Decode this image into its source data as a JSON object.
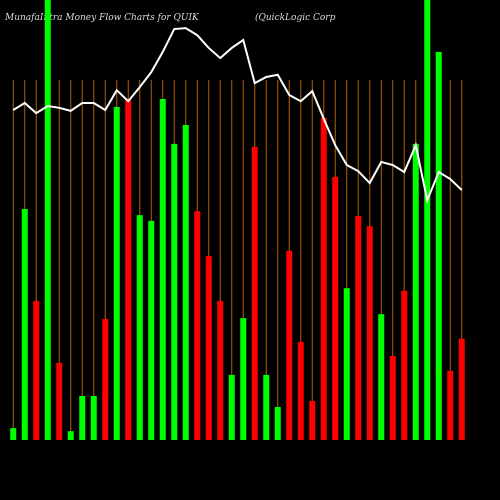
{
  "chart_data": {
    "type": "bar",
    "title": "MunafaIntra Money Flow Charts for QUIK",
    "subtitle": "(QuickLogic Corp",
    "categories": [
      null,
      null,
      null,
      null,
      null,
      null,
      null,
      null,
      null,
      null,
      null,
      null,
      null,
      null,
      null,
      null,
      null,
      null,
      null,
      null,
      null,
      null,
      null,
      null,
      null,
      null,
      null,
      null,
      null,
      null,
      null,
      null,
      null,
      null,
      null,
      null,
      null,
      null,
      null,
      null
    ],
    "values": [
      2.7,
      52.5,
      31.6,
      100,
      17.5,
      2,
      10,
      10,
      27.5,
      75.7,
      77.5,
      51.1,
      49.8,
      77.5,
      67.3,
      71.6,
      52,
      41.8,
      31.6,
      14.8,
      27.7,
      66.6,
      14.8,
      7.5,
      43,
      22.3,
      8.9,
      73.2,
      59.8,
      34.5,
      50.9,
      48.6,
      28.6,
      19.1,
      33.9,
      67.3,
      100,
      88.2,
      15.7,
      23
    ],
    "bar_colors": [
      "#00ff00",
      "#00ff00",
      "#ff0000",
      "#00ff00",
      "#ff0000",
      "#00ff00",
      "#00ff00",
      "#00ff00",
      "#ff0000",
      "#00ff00",
      "#ff0000",
      "#00ff00",
      "#00ff00",
      "#00ff00",
      "#00ff00",
      "#00ff00",
      "#ff0000",
      "#ff0000",
      "#ff0000",
      "#00ff00",
      "#00ff00",
      "#ff0000",
      "#00ff00",
      "#00ff00",
      "#ff0000",
      "#ff0000",
      "#ff0000",
      "#ff0000",
      "#ff0000",
      "#00ff00",
      "#ff0000",
      "#ff0000",
      "#00ff00",
      "#ff0000",
      "#ff0000",
      "#00ff00",
      "#00ff00",
      "#00ff00",
      "#ff0000",
      "#ff0000"
    ],
    "line_values": [
      75,
      76.6,
      74.3,
      75.9,
      75.5,
      74.8,
      76.6,
      76.6,
      75,
      79.5,
      77,
      80.2,
      83.6,
      88.2,
      93.4,
      93.6,
      92,
      89.1,
      86.8,
      89.1,
      90.9,
      81.1,
      82.5,
      83,
      78.4,
      77,
      79.3,
      73,
      67,
      62.5,
      61.1,
      58.4,
      63.2,
      62.5,
      60.9,
      67,
      54.5,
      60.9,
      59.3,
      56.8
    ],
    "line_color": "#ffffff",
    "guide_color": "#b5610a",
    "ylim": [
      0,
      100
    ]
  }
}
